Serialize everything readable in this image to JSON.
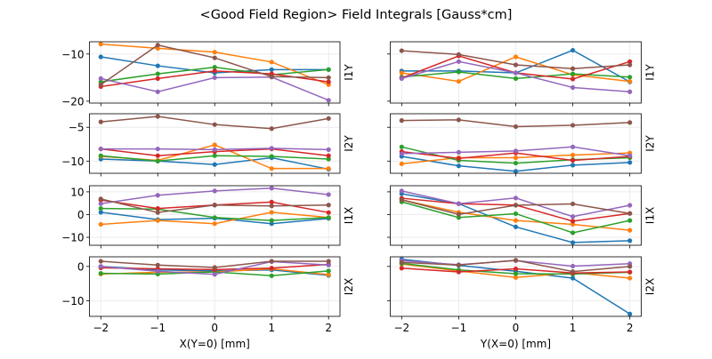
{
  "chart_data": {
    "type": "line",
    "title": "<Good Field Region> Field Integrals [Gauss*cm]",
    "x": [
      -2,
      -1,
      0,
      1,
      2
    ],
    "xlim": [
      -2.2,
      2.2
    ],
    "xticks": [
      -2,
      -1,
      0,
      1,
      2
    ],
    "xlabels": [
      "X(Y=0) [mm]",
      "Y(X=0) [mm]"
    ],
    "grid": true,
    "series_colors": [
      "#1f77b4",
      "#ff7f0e",
      "#2ca02c",
      "#d62728",
      "#9467bd",
      "#8c564b"
    ],
    "panels": [
      {
        "row": 0,
        "col": 0,
        "ylabel": "I1Y",
        "ylim": [
          -20.4,
          -7.4
        ],
        "yticks": [
          -10,
          -20
        ],
        "series": [
          [
            -10.6,
            -12.5,
            -14.0,
            -13.3,
            -13.3
          ],
          [
            -7.9,
            -8.8,
            -9.6,
            -11.7,
            -16.5
          ],
          [
            -15.9,
            -14.2,
            -12.8,
            -14.4,
            -13.3
          ],
          [
            -16.9,
            -15.2,
            -13.6,
            -14.2,
            -15.9
          ],
          [
            -15.2,
            -18.0,
            -15.0,
            -14.9,
            -19.8
          ],
          [
            -16.5,
            -8.1,
            -10.8,
            -14.8,
            -15.0
          ]
        ]
      },
      {
        "row": 0,
        "col": 1,
        "ylabel": "I1Y",
        "ylim": [
          -20.4,
          -7.4
        ],
        "yticks": [
          -10,
          -20
        ],
        "series": [
          [
            -13.6,
            -13.6,
            -14.0,
            -9.2,
            -15.9
          ],
          [
            -14.0,
            -15.8,
            -10.6,
            -14.4,
            -15.8
          ],
          [
            -14.9,
            -13.8,
            -15.2,
            -14.2,
            -14.9
          ],
          [
            -15.1,
            -10.4,
            -14.0,
            -15.3,
            -11.6
          ],
          [
            -15.2,
            -11.6,
            -14.0,
            -17.1,
            -18.0
          ],
          [
            -9.3,
            -10.1,
            -12.3,
            -13.1,
            -12.3
          ]
        ]
      },
      {
        "row": 1,
        "col": 0,
        "ylabel": "I2Y",
        "ylim": [
          -11.8,
          -3.0
        ],
        "yticks": [
          -5,
          -10
        ],
        "series": [
          [
            -9.7,
            -10.0,
            -10.5,
            -9.5,
            -11.2
          ],
          [
            -9.3,
            -9.9,
            -7.6,
            -11.1,
            -11.1
          ],
          [
            -9.2,
            -10.0,
            -9.2,
            -9.3,
            -9.7
          ],
          [
            -8.2,
            -9.2,
            -8.6,
            -8.2,
            -9.2
          ],
          [
            -8.2,
            -8.2,
            -8.3,
            -8.1,
            -8.3
          ],
          [
            -4.2,
            -3.4,
            -4.6,
            -5.2,
            -3.7
          ]
        ]
      },
      {
        "row": 1,
        "col": 1,
        "ylabel": "I2Y",
        "ylim": [
          -11.8,
          -3.0
        ],
        "yticks": [
          -5,
          -10
        ],
        "series": [
          [
            -9.3,
            -10.7,
            -11.5,
            -10.6,
            -10.2
          ],
          [
            -10.4,
            -9.5,
            -9.5,
            -9.1,
            -8.8
          ],
          [
            -7.9,
            -9.9,
            -10.3,
            -9.8,
            -9.5
          ],
          [
            -8.6,
            -9.6,
            -8.8,
            -9.9,
            -9.3
          ],
          [
            -8.9,
            -8.7,
            -8.5,
            -7.9,
            -9.2
          ],
          [
            -4.0,
            -3.9,
            -4.9,
            -4.7,
            -4.3
          ]
        ]
      },
      {
        "row": 2,
        "col": 0,
        "ylabel": "I1X",
        "ylim": [
          -13.5,
          12.7
        ],
        "yticks": [
          10,
          0,
          -10
        ],
        "series": [
          [
            1.0,
            -2.2,
            -1.6,
            -4.0,
            -1.7
          ],
          [
            -4.3,
            -2.6,
            -4.0,
            1.0,
            -1.3
          ],
          [
            2.7,
            2.4,
            -1.3,
            -2.6,
            -1.3
          ],
          [
            6.4,
            2.7,
            4.2,
            5.5,
            0.9
          ],
          [
            4.8,
            8.5,
            10.4,
            11.6,
            8.8
          ],
          [
            6.9,
            0.9,
            4.2,
            3.8,
            4.2
          ]
        ]
      },
      {
        "row": 2,
        "col": 1,
        "ylabel": "I1X",
        "ylim": [
          -13.5,
          12.7
        ],
        "yticks": [
          10,
          0,
          -10
        ],
        "series": [
          [
            9.2,
            4.8,
            -5.4,
            -12.3,
            -11.5
          ],
          [
            6.5,
            1.0,
            -2.6,
            -4.3,
            -6.9
          ],
          [
            5.6,
            -1.3,
            0.4,
            -8.0,
            -2.6
          ],
          [
            7.2,
            4.8,
            4.2,
            -2.9,
            0.5
          ],
          [
            10.4,
            4.8,
            7.3,
            -0.9,
            4.1
          ],
          [
            6.5,
            0.1,
            4.1,
            4.7,
            0.5
          ]
        ]
      },
      {
        "row": 3,
        "col": 0,
        "ylabel": "I2X",
        "ylim": [
          -14.5,
          2.8
        ],
        "yticks": [
          0,
          -10
        ],
        "series": [
          [
            0.0,
            -1.0,
            -1.3,
            -1.0,
            -2.6
          ],
          [
            -2.2,
            -1.7,
            -1.6,
            -0.7,
            -2.4
          ],
          [
            -2.0,
            -2.2,
            -1.6,
            -2.7,
            -1.3
          ],
          [
            -0.4,
            -0.7,
            -0.9,
            -0.5,
            0.6
          ],
          [
            0.0,
            -1.4,
            -2.3,
            1.4,
            0.4
          ],
          [
            1.5,
            0.4,
            -0.3,
            1.5,
            1.5
          ]
        ]
      },
      {
        "row": 3,
        "col": 1,
        "ylabel": "I2X",
        "ylim": [
          -14.5,
          2.8
        ],
        "yticks": [
          0,
          -10
        ],
        "series": [
          [
            2.1,
            0.3,
            -1.4,
            -3.4,
            -13.8
          ],
          [
            0.7,
            -1.3,
            -3.2,
            -1.8,
            -3.4
          ],
          [
            0.9,
            -1.0,
            -2.1,
            -2.2,
            -1.7
          ],
          [
            -0.5,
            -1.6,
            -0.7,
            -1.9,
            -1.6
          ],
          [
            1.7,
            0.5,
            1.7,
            0.1,
            0.8
          ],
          [
            1.2,
            0.4,
            1.8,
            -1.5,
            0.0
          ]
        ]
      }
    ]
  }
}
